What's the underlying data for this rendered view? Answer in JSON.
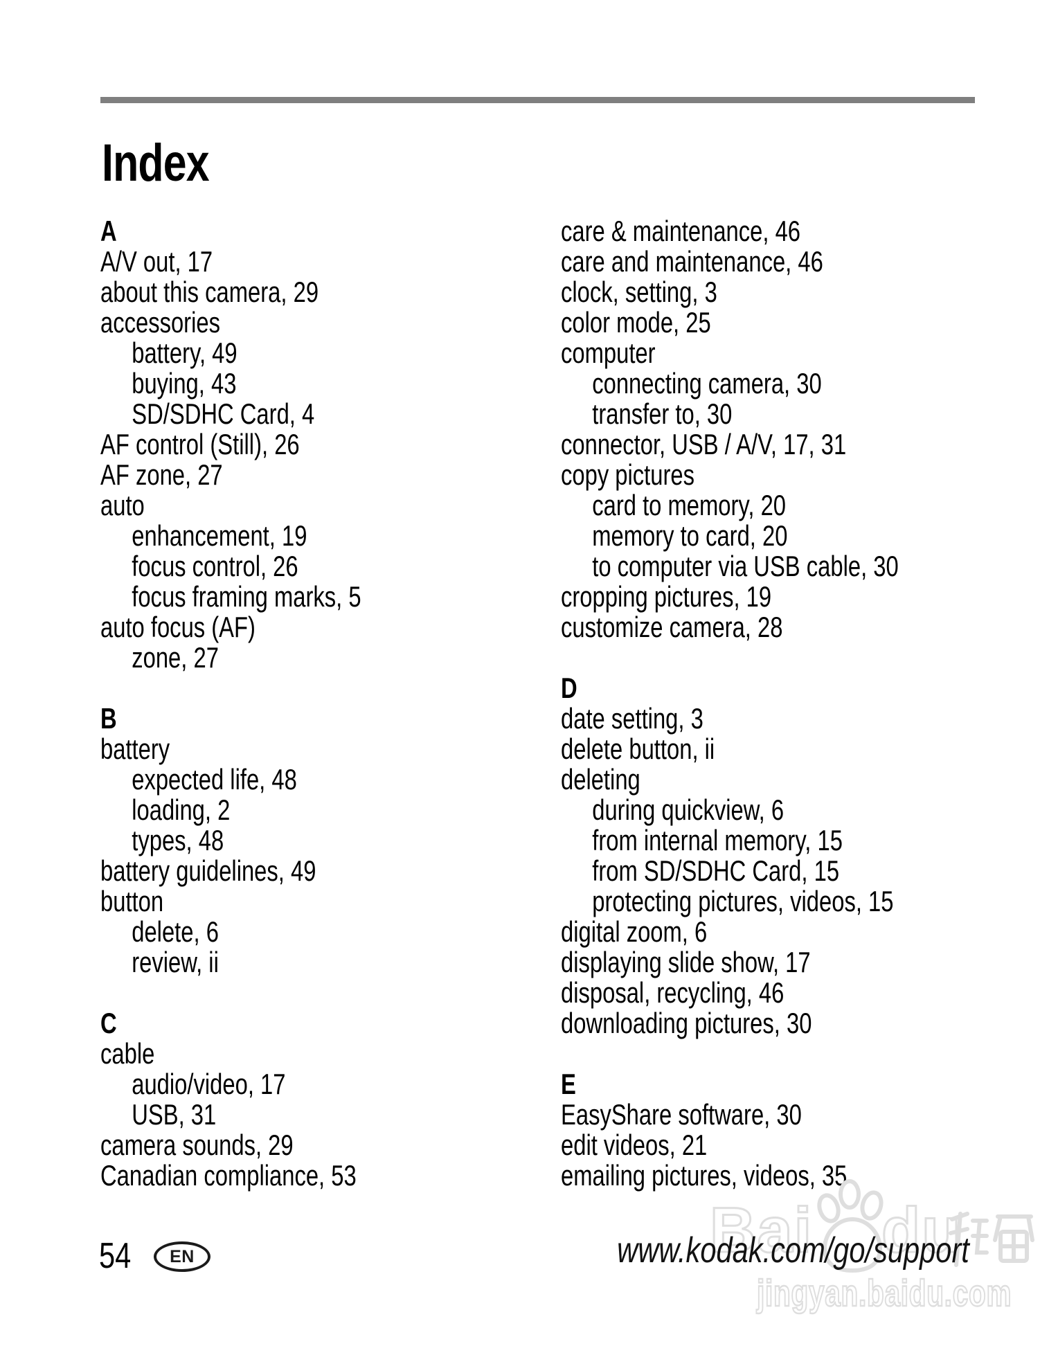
{
  "page": {
    "title": "Index",
    "page_number": "54",
    "language_badge": "EN",
    "footer_url": "www.kodak.com/go/support"
  },
  "index": {
    "left_column": [
      {
        "header": "A",
        "entries": [
          {
            "text": "A/V out, 17",
            "indent": false
          },
          {
            "text": "about this camera, 29",
            "indent": false
          },
          {
            "text": "accessories",
            "indent": false
          },
          {
            "text": "battery, 49",
            "indent": true
          },
          {
            "text": "buying, 43",
            "indent": true
          },
          {
            "text": "SD/SDHC Card, 4",
            "indent": true
          },
          {
            "text": "AF control (Still), 26",
            "indent": false
          },
          {
            "text": "AF zone, 27",
            "indent": false
          },
          {
            "text": "auto",
            "indent": false
          },
          {
            "text": "enhancement, 19",
            "indent": true
          },
          {
            "text": "focus control, 26",
            "indent": true
          },
          {
            "text": "focus framing marks, 5",
            "indent": true
          },
          {
            "text": "auto focus (AF)",
            "indent": false
          },
          {
            "text": "zone, 27",
            "indent": true
          }
        ]
      },
      {
        "header": "B",
        "entries": [
          {
            "text": "battery",
            "indent": false
          },
          {
            "text": "expected life, 48",
            "indent": true
          },
          {
            "text": "loading, 2",
            "indent": true
          },
          {
            "text": "types, 48",
            "indent": true
          },
          {
            "text": "battery guidelines, 49",
            "indent": false
          },
          {
            "text": "button",
            "indent": false
          },
          {
            "text": "delete, 6",
            "indent": true
          },
          {
            "text": "review, ii",
            "indent": true
          }
        ]
      },
      {
        "header": "C",
        "entries": [
          {
            "text": "cable",
            "indent": false
          },
          {
            "text": "audio/video, 17",
            "indent": true
          },
          {
            "text": "USB, 31",
            "indent": true
          },
          {
            "text": "camera sounds, 29",
            "indent": false
          },
          {
            "text": "Canadian compliance, 53",
            "indent": false
          }
        ]
      }
    ],
    "right_column": [
      {
        "header": "",
        "entries": [
          {
            "text": "care & maintenance, 46",
            "indent": false
          },
          {
            "text": "care and maintenance, 46",
            "indent": false
          },
          {
            "text": "clock, setting, 3",
            "indent": false
          },
          {
            "text": "color mode, 25",
            "indent": false
          },
          {
            "text": "computer",
            "indent": false
          },
          {
            "text": "connecting camera, 30",
            "indent": true
          },
          {
            "text": "transfer to, 30",
            "indent": true
          },
          {
            "text": "connector, USB / A/V, 17, 31",
            "indent": false
          },
          {
            "text": "copy pictures",
            "indent": false
          },
          {
            "text": "card to memory, 20",
            "indent": true
          },
          {
            "text": "memory to card, 20",
            "indent": true
          },
          {
            "text": "to computer via USB cable, 30",
            "indent": true
          },
          {
            "text": "cropping pictures, 19",
            "indent": false
          },
          {
            "text": "customize camera, 28",
            "indent": false
          }
        ]
      },
      {
        "header": "D",
        "entries": [
          {
            "text": "date setting, 3",
            "indent": false
          },
          {
            "text": "delete button, ii",
            "indent": false
          },
          {
            "text": "deleting",
            "indent": false
          },
          {
            "text": "during quickview, 6",
            "indent": true
          },
          {
            "text": "from internal memory, 15",
            "indent": true
          },
          {
            "text": "from SD/SDHC Card, 15",
            "indent": true
          },
          {
            "text": "protecting pictures, videos, 15",
            "indent": true
          },
          {
            "text": "digital zoom, 6",
            "indent": false
          },
          {
            "text": "displaying slide show, 17",
            "indent": false
          },
          {
            "text": "disposal, recycling, 46",
            "indent": false
          },
          {
            "text": "downloading pictures, 30",
            "indent": false
          }
        ]
      },
      {
        "header": "E",
        "entries": [
          {
            "text": "EasyShare software, 30",
            "indent": false
          },
          {
            "text": "edit videos, 21",
            "indent": false
          },
          {
            "text": "emailing pictures, videos, 35",
            "indent": false
          }
        ]
      }
    ]
  },
  "watermark": {
    "brand_left": "Bai",
    "brand_right": "du",
    "brand_cjk": "经验",
    "site": "jingyan.baidu.com"
  },
  "colors": {
    "rule_bar": "#7f7f7f",
    "text": "#000000",
    "watermark": "#dedede"
  }
}
